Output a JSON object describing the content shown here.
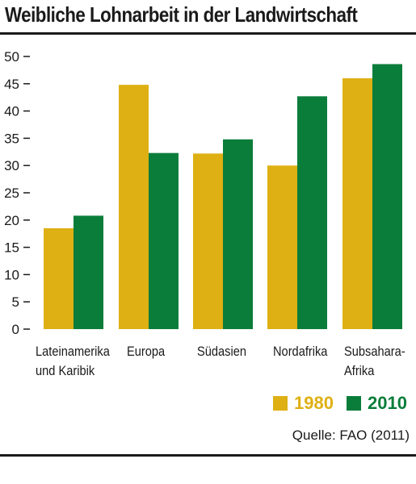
{
  "chart_data": {
    "type": "bar",
    "title": "Weibliche Lohnarbeit in der Landwirtschaft",
    "categories": [
      [
        "Lateinamerika",
        "und Karibik"
      ],
      [
        "Europa"
      ],
      [
        "Südasien"
      ],
      [
        "Nordafrika"
      ],
      [
        "Subsahara-",
        "Afrika"
      ]
    ],
    "series": [
      {
        "name": "1980",
        "color": "#deb013",
        "values": [
          18.5,
          44.8,
          32.2,
          30.0,
          46.0
        ]
      },
      {
        "name": "2010",
        "color": "#0b7d3a",
        "values": [
          20.8,
          32.3,
          34.8,
          42.7,
          48.6
        ]
      }
    ],
    "ylim": [
      0,
      50
    ],
    "yticks": [
      0,
      5,
      10,
      15,
      20,
      25,
      30,
      35,
      40,
      45,
      50
    ],
    "grid": false,
    "legend_position": "bottom-right"
  },
  "source": "Quelle: FAO (2011)"
}
